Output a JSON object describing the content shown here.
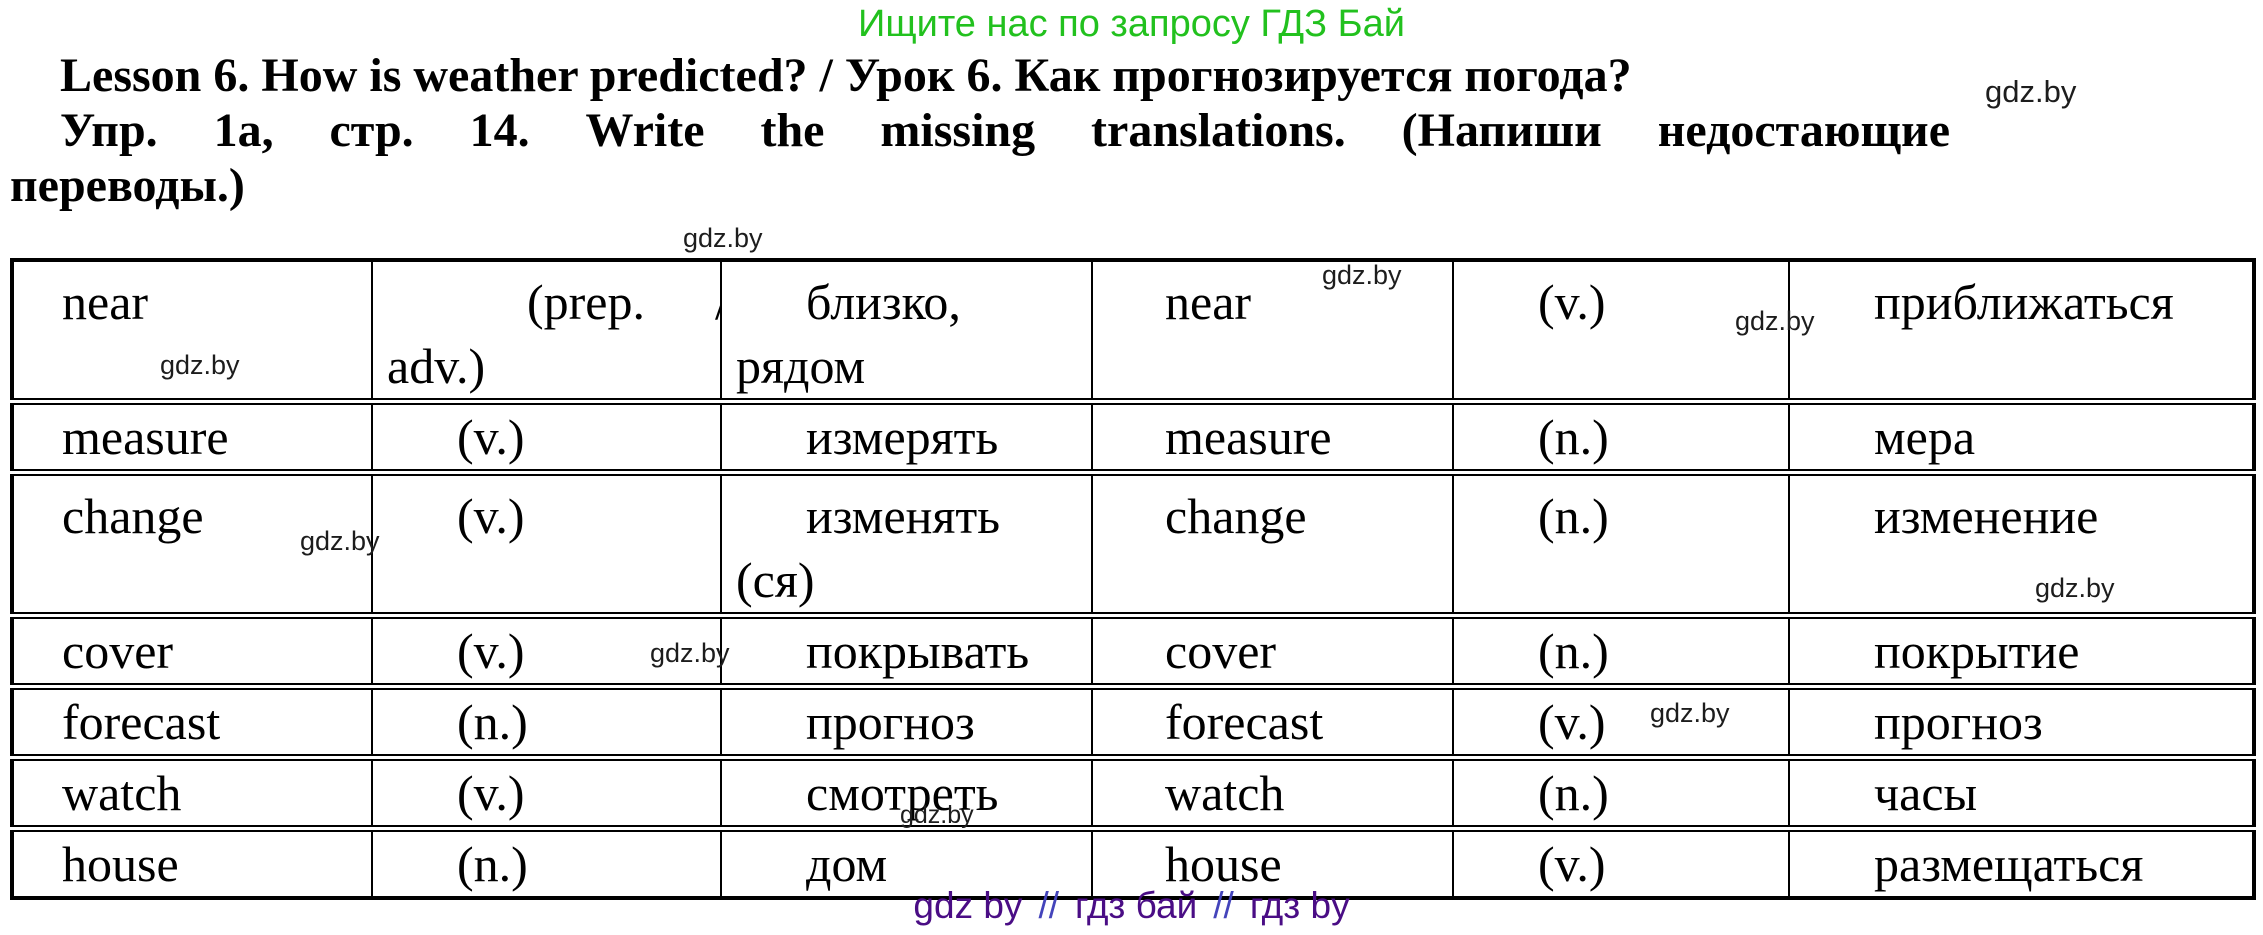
{
  "promo": {
    "text": "Ищите нас по запросу ГДЗ Бай",
    "color": "#22c11e"
  },
  "heading": {
    "line1": "Lesson 6. How is weather predicted? / Урок 6. Как прогнозируется погода?",
    "line2": "Упр. 1а, стр. 14. Write the missing translations. (Напиши недостающие",
    "line3": "переводы.)"
  },
  "watermark": {
    "text": "gdz.by"
  },
  "table": {
    "rows": [
      {
        "word1": "near",
        "pos1_open": "(prep.",
        "pos1_slash": "/",
        "pos1_cont": "adv.)",
        "trans1": "близко,\nрядом",
        "word2": "near",
        "pos2": "(v.)",
        "trans2": "приближаться"
      },
      {
        "word1": "measure",
        "pos1": "(v.)",
        "trans1": "измерять",
        "word2": "measure",
        "pos2": "(n.)",
        "trans2": "мера"
      },
      {
        "word1": "change",
        "pos1": "(v.)",
        "trans1": "изменять\n(ся)",
        "word2": "change",
        "pos2": "(n.)",
        "trans2": "изменение"
      },
      {
        "word1": "cover",
        "pos1": "(v.)",
        "trans1": "покрывать",
        "word2": "cover",
        "pos2": "(n.)",
        "trans2": "покрытие"
      },
      {
        "word1": "forecast",
        "pos1": "(n.)",
        "trans1": "прогноз",
        "word2": "forecast",
        "pos2": "(v.)",
        "trans2": "прогноз"
      },
      {
        "word1": "watch",
        "pos1": "(v.)",
        "trans1": "смотреть",
        "word2": "watch",
        "pos2": "(n.)",
        "trans2": "часы"
      },
      {
        "word1": "house",
        "pos1": "(n.)",
        "trans1": "дом",
        "word2": "house",
        "pos2": "(v.)",
        "trans2": "размещаться"
      }
    ]
  },
  "footer": {
    "items": [
      "gdz by",
      "//",
      "гдз бай",
      "//",
      "гдз by"
    ],
    "word_color": "#4a0d85",
    "slash_color": "#4444bb"
  }
}
